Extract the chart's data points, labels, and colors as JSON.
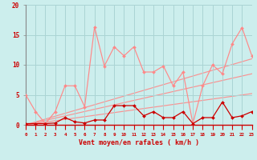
{
  "xlabel": "Vent moyen/en rafales ( km/h )",
  "background_color": "#cceeed",
  "grid_color": "#aad4d4",
  "line_color_light": "#ff8888",
  "line_color_dark": "#cc0000",
  "x_values": [
    0,
    1,
    2,
    3,
    4,
    5,
    6,
    7,
    8,
    9,
    10,
    11,
    12,
    13,
    14,
    15,
    16,
    17,
    18,
    19,
    20,
    21,
    22,
    23
  ],
  "series_rafales": [
    5.0,
    2.2,
    0.2,
    2.2,
    6.5,
    6.5,
    3.0,
    16.3,
    9.8,
    13.0,
    11.5,
    13.0,
    8.8,
    8.8,
    9.8,
    6.5,
    8.8,
    0.2,
    6.5,
    10.0,
    8.5,
    13.5,
    16.2,
    11.5
  ],
  "series_moyen": [
    0.2,
    0.2,
    0.2,
    0.3,
    1.2,
    0.5,
    0.3,
    0.8,
    0.8,
    3.2,
    3.2,
    3.2,
    1.5,
    2.2,
    1.2,
    1.2,
    2.2,
    0.2,
    1.2,
    1.2,
    3.8,
    1.2,
    1.5,
    2.2
  ],
  "trend_lines": [
    [
      0.0,
      5.2
    ],
    [
      0.0,
      8.5
    ],
    [
      0.0,
      11.0
    ]
  ],
  "ylim": [
    0,
    20
  ],
  "xlim": [
    0,
    23
  ],
  "yticks": [
    0,
    5,
    10,
    15,
    20
  ],
  "xticks": [
    0,
    1,
    2,
    3,
    4,
    5,
    6,
    7,
    8,
    9,
    10,
    11,
    12,
    13,
    14,
    15,
    16,
    17,
    18,
    19,
    20,
    21,
    22,
    23
  ]
}
